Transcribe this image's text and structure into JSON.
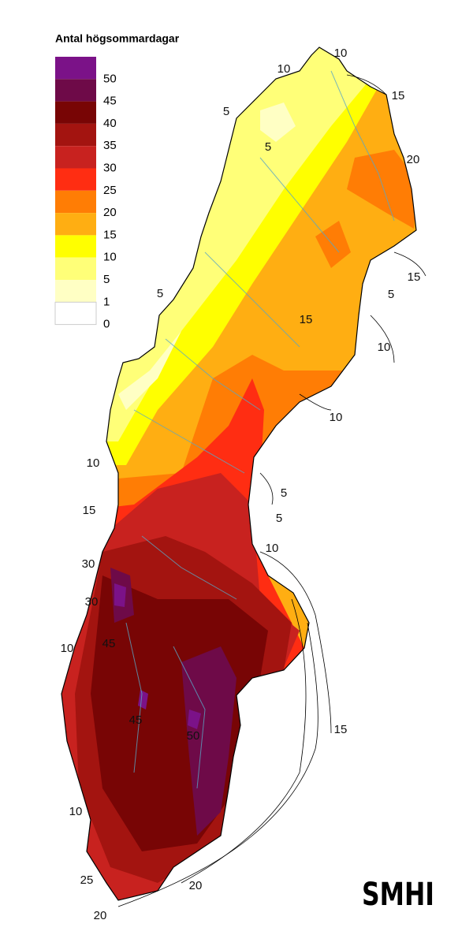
{
  "legend": {
    "title": "Antal högsommardagar",
    "items": [
      {
        "label": "50",
        "color": "#7b1288"
      },
      {
        "label": "45",
        "color": "#6e0a48"
      },
      {
        "label": "40",
        "color": "#780505"
      },
      {
        "label": "35",
        "color": "#a31410"
      },
      {
        "label": "30",
        "color": "#c8221f"
      },
      {
        "label": "25",
        "color": "#ff2d12"
      },
      {
        "label": "20",
        "color": "#ff7d05"
      },
      {
        "label": "15",
        "color": "#ffae12"
      },
      {
        "label": "10",
        "color": "#ffff00"
      },
      {
        "label": "5",
        "color": "#ffff78"
      },
      {
        "label": "1",
        "color": "#ffffc4"
      },
      {
        "label": "0",
        "color": "#ffffff"
      }
    ]
  },
  "contour_labels": [
    "10",
    "10",
    "15",
    "5",
    "5",
    "20",
    "15",
    "5",
    "5",
    "15",
    "10",
    "10",
    "10",
    "5",
    "5",
    "15",
    "10",
    "30",
    "30",
    "45",
    "10",
    "45",
    "50",
    "15",
    "10",
    "25",
    "20",
    "20"
  ],
  "logo": "SMHI"
}
